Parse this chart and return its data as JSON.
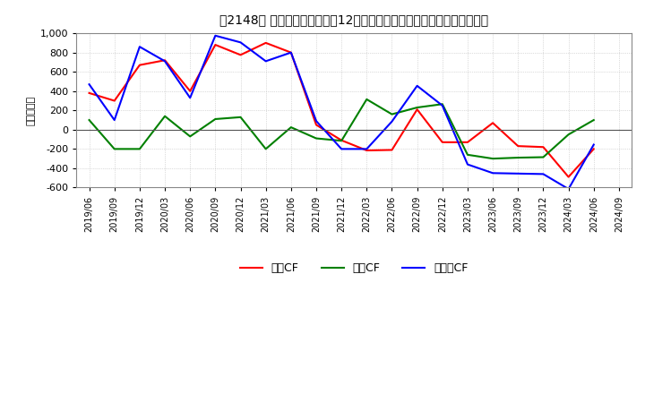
{
  "title": "　2148、 キャッシュフローの12か月移動合計の対前年同期増減額の推移",
  "title2": "[ⅈ]  キャッシュフローの12か月移動合計の対前年同期増減額の推移",
  "ylabel": "（百万円）",
  "background_color": "#ffffff",
  "plot_bg_color": "#ffffff",
  "ylim": [
    -600,
    1000
  ],
  "yticks": [
    -600,
    -400,
    -200,
    0,
    200,
    400,
    600,
    800,
    1000
  ],
  "dates": [
    "2019/06",
    "2019/09",
    "2019/12",
    "2020/03",
    "2020/06",
    "2020/09",
    "2020/12",
    "2021/03",
    "2021/06",
    "2021/09",
    "2021/12",
    "2022/03",
    "2022/06",
    "2022/09",
    "2022/12",
    "2023/03",
    "2023/06",
    "2023/09",
    "2023/12",
    "2024/03",
    "2024/06",
    "2024/09"
  ],
  "eigyo_cf": [
    380,
    300,
    670,
    720,
    400,
    880,
    775,
    900,
    800,
    50,
    -110,
    -215,
    -210,
    210,
    -130,
    -130,
    70,
    -170,
    -180,
    -490,
    -200,
    null
  ],
  "toshi_cf": [
    100,
    -200,
    -200,
    140,
    -70,
    110,
    130,
    -200,
    25,
    -90,
    -115,
    315,
    160,
    230,
    265,
    -260,
    -300,
    -290,
    -285,
    -50,
    100,
    null
  ],
  "free_cf": [
    470,
    100,
    860,
    710,
    330,
    975,
    905,
    710,
    800,
    90,
    -200,
    -200,
    85,
    455,
    250,
    -360,
    -450,
    -455,
    -460,
    -615,
    -155,
    null
  ],
  "eigyo_color": "#ff0000",
  "toshi_color": "#008000",
  "free_color": "#0000ff",
  "legend_labels": [
    "営業CF",
    "投資CF",
    "フリーCF"
  ]
}
